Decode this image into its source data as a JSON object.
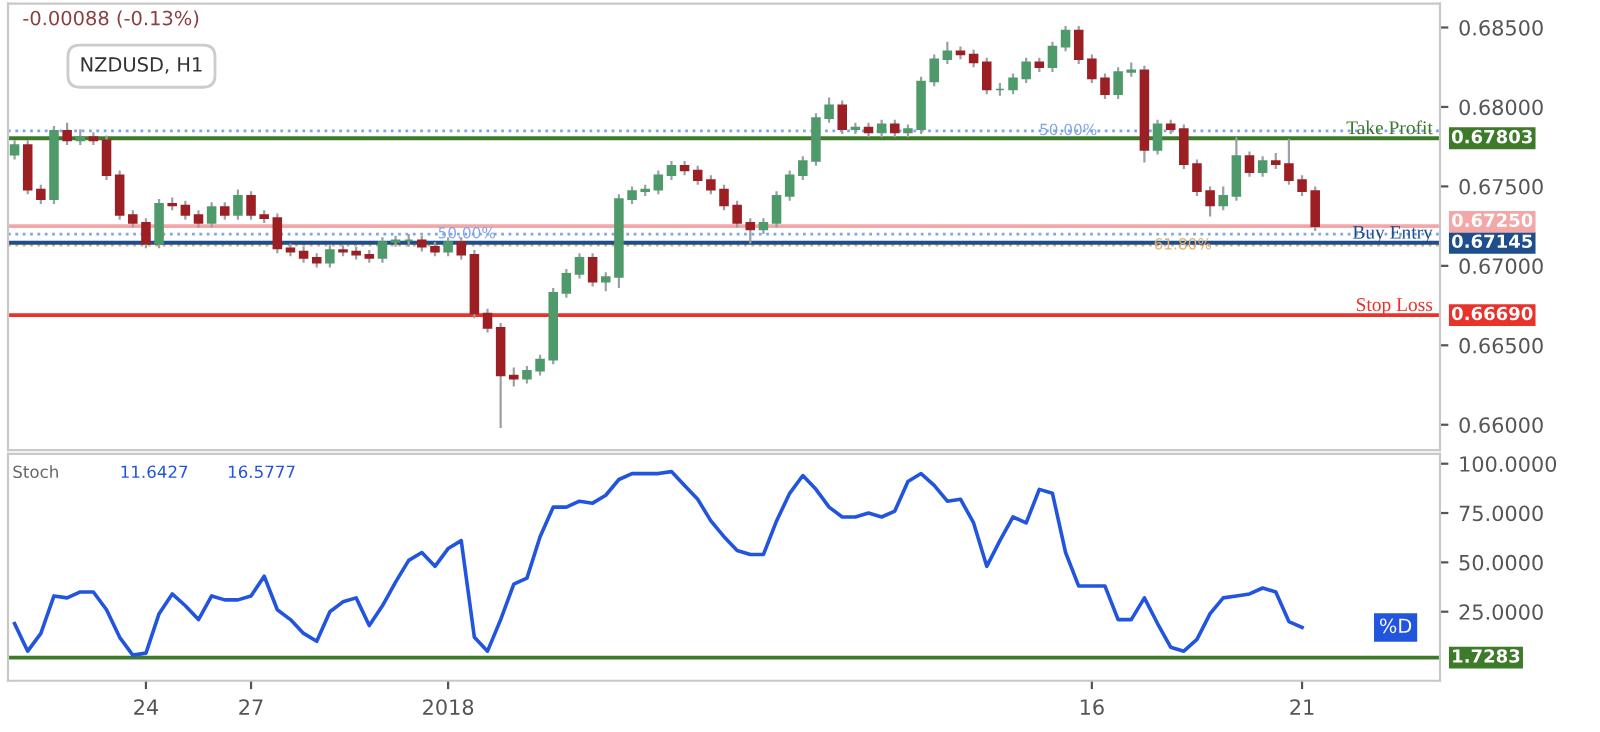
{
  "chart_data": [
    {
      "type": "candlestick",
      "categories": [
        null,
        null,
        null,
        null,
        null,
        null,
        null,
        null,
        null,
        null,
        "24",
        null,
        null,
        null,
        null,
        null,
        null,
        null,
        "27",
        null,
        null,
        null,
        null,
        null,
        null,
        null,
        null,
        null,
        null,
        null,
        null,
        null,
        null,
        "2018",
        null,
        null,
        null,
        null,
        null,
        null,
        null,
        null,
        null,
        null,
        null,
        null,
        null,
        null,
        null,
        null,
        null,
        null,
        null,
        null,
        null,
        null,
        null,
        null,
        null,
        null,
        null,
        null,
        null,
        null,
        null,
        null,
        null,
        null,
        null,
        null,
        null,
        null,
        null,
        null,
        null,
        null,
        null,
        null,
        null,
        null,
        null,
        null,
        "16",
        null,
        null,
        null,
        null,
        null,
        null,
        null,
        null,
        null,
        null,
        null,
        null,
        null,
        null,
        null,
        "21",
        null,
        null,
        null,
        null,
        null,
        null,
        null,
        null,
        null,
        null
      ],
      "ohlc": [
        [
          0.677,
          0.6779,
          0.6767,
          0.6776
        ],
        [
          0.6776,
          0.6779,
          0.6745,
          0.6748
        ],
        [
          0.6748,
          0.6751,
          0.6739,
          0.6742
        ],
        [
          0.6742,
          0.6788,
          0.6739,
          0.6785
        ],
        [
          0.6785,
          0.679,
          0.6776,
          0.6779
        ],
        [
          0.6779,
          0.6786,
          0.6776,
          0.6781
        ],
        [
          0.6781,
          0.6784,
          0.6776,
          0.6779
        ],
        [
          0.6779,
          0.6782,
          0.6754,
          0.6757
        ],
        [
          0.6757,
          0.676,
          0.6729,
          0.6732
        ],
        [
          0.6732,
          0.6735,
          0.6724,
          0.6727
        ],
        [
          0.6727,
          0.673,
          0.6711,
          0.6714
        ],
        [
          0.6714,
          0.6742,
          0.6711,
          0.6739
        ],
        [
          0.6739,
          0.6743,
          0.6735,
          0.6738
        ],
        [
          0.6738,
          0.6741,
          0.6729,
          0.6732
        ],
        [
          0.6732,
          0.6735,
          0.6724,
          0.6727
        ],
        [
          0.6727,
          0.674,
          0.6724,
          0.6737
        ],
        [
          0.6737,
          0.674,
          0.6729,
          0.6732
        ],
        [
          0.6732,
          0.6748,
          0.6729,
          0.6744
        ],
        [
          0.6744,
          0.6747,
          0.6729,
          0.6732
        ],
        [
          0.6732,
          0.6735,
          0.6727,
          0.673
        ],
        [
          0.673,
          0.6733,
          0.6708,
          0.6711
        ],
        [
          0.6711,
          0.6714,
          0.6706,
          0.6709
        ],
        [
          0.6709,
          0.6712,
          0.6702,
          0.6705
        ],
        [
          0.6705,
          0.6708,
          0.6699,
          0.6702
        ],
        [
          0.6702,
          0.6713,
          0.6699,
          0.671
        ],
        [
          0.671,
          0.6713,
          0.6706,
          0.6709
        ],
        [
          0.6709,
          0.6712,
          0.6704,
          0.6707
        ],
        [
          0.6707,
          0.671,
          0.6702,
          0.6705
        ],
        [
          0.6705,
          0.6718,
          0.6702,
          0.6715
        ],
        [
          0.6715,
          0.6719,
          0.6712,
          0.6716
        ],
        [
          0.6716,
          0.672,
          0.6712,
          0.6716
        ],
        [
          0.6716,
          0.6719,
          0.6709,
          0.6712
        ],
        [
          0.6712,
          0.6715,
          0.6706,
          0.6709
        ],
        [
          0.6709,
          0.6718,
          0.6706,
          0.6715
        ],
        [
          0.6715,
          0.6718,
          0.6704,
          0.6707
        ],
        [
          0.6707,
          0.671,
          0.6667,
          0.667
        ],
        [
          0.667,
          0.6673,
          0.6658,
          0.6661
        ],
        [
          0.6661,
          0.6664,
          0.6598,
          0.6631
        ],
        [
          0.6631,
          0.6636,
          0.6624,
          0.6629
        ],
        [
          0.6629,
          0.6637,
          0.6626,
          0.6634
        ],
        [
          0.6634,
          0.6644,
          0.6631,
          0.6641
        ],
        [
          0.6641,
          0.6686,
          0.6638,
          0.6683
        ],
        [
          0.6683,
          0.6698,
          0.668,
          0.6695
        ],
        [
          0.6695,
          0.6708,
          0.6692,
          0.6705
        ],
        [
          0.6705,
          0.6708,
          0.6687,
          0.669
        ],
        [
          0.669,
          0.6696,
          0.6684,
          0.6693
        ],
        [
          0.6693,
          0.6745,
          0.6686,
          0.6742
        ],
        [
          0.6742,
          0.675,
          0.6739,
          0.6747
        ],
        [
          0.6747,
          0.6751,
          0.6744,
          0.6748
        ],
        [
          0.6748,
          0.676,
          0.6745,
          0.6757
        ],
        [
          0.6757,
          0.6766,
          0.6754,
          0.6763
        ],
        [
          0.6763,
          0.6766,
          0.6757,
          0.676
        ],
        [
          0.676,
          0.6763,
          0.6751,
          0.6754
        ],
        [
          0.6754,
          0.6757,
          0.6745,
          0.6748
        ],
        [
          0.6748,
          0.6751,
          0.6735,
          0.6738
        ],
        [
          0.6738,
          0.6741,
          0.6724,
          0.6727
        ],
        [
          0.6727,
          0.673,
          0.6714,
          0.6723
        ],
        [
          0.6723,
          0.673,
          0.672,
          0.6727
        ],
        [
          0.6727,
          0.6747,
          0.6724,
          0.6744
        ],
        [
          0.6744,
          0.676,
          0.6741,
          0.6757
        ],
        [
          0.6757,
          0.6769,
          0.6754,
          0.6766
        ],
        [
          0.6766,
          0.6796,
          0.6763,
          0.6793
        ],
        [
          0.6793,
          0.6806,
          0.679,
          0.6801
        ],
        [
          0.6801,
          0.6804,
          0.6783,
          0.6786
        ],
        [
          0.6786,
          0.679,
          0.6783,
          0.6787
        ],
        [
          0.6787,
          0.679,
          0.6781,
          0.6784
        ],
        [
          0.6784,
          0.6792,
          0.6781,
          0.6789
        ],
        [
          0.6789,
          0.6792,
          0.6781,
          0.6784
        ],
        [
          0.6784,
          0.6789,
          0.6781,
          0.6786
        ],
        [
          0.6786,
          0.6819,
          0.6783,
          0.6816
        ],
        [
          0.6816,
          0.6833,
          0.6813,
          0.683
        ],
        [
          0.683,
          0.6841,
          0.6827,
          0.6835
        ],
        [
          0.6835,
          0.6838,
          0.683,
          0.6833
        ],
        [
          0.6833,
          0.6836,
          0.6825,
          0.6828
        ],
        [
          0.6828,
          0.6831,
          0.6808,
          0.6811
        ],
        [
          0.6811,
          0.6815,
          0.6807,
          0.6811
        ],
        [
          0.6811,
          0.6821,
          0.6808,
          0.6818
        ],
        [
          0.6818,
          0.6831,
          0.6815,
          0.6828
        ],
        [
          0.6828,
          0.6831,
          0.6822,
          0.6825
        ],
        [
          0.6825,
          0.6841,
          0.6822,
          0.6838
        ],
        [
          0.6838,
          0.6851,
          0.6835,
          0.6848
        ],
        [
          0.6848,
          0.6851,
          0.6827,
          0.683
        ],
        [
          0.683,
          0.6833,
          0.6815,
          0.6818
        ],
        [
          0.6818,
          0.6821,
          0.6805,
          0.6808
        ],
        [
          0.6808,
          0.6825,
          0.6805,
          0.6822
        ],
        [
          0.6822,
          0.6828,
          0.6819,
          0.6823
        ],
        [
          0.6823,
          0.6826,
          0.6765,
          0.6773
        ],
        [
          0.6773,
          0.6792,
          0.677,
          0.6789
        ],
        [
          0.6789,
          0.6792,
          0.6783,
          0.6786
        ],
        [
          0.6786,
          0.6789,
          0.6761,
          0.6764
        ],
        [
          0.6764,
          0.6767,
          0.6744,
          0.6747
        ],
        [
          0.6747,
          0.675,
          0.6731,
          0.6738
        ],
        [
          0.6738,
          0.675,
          0.6735,
          0.6744
        ],
        [
          0.6744,
          0.6781,
          0.6741,
          0.6769
        ],
        [
          0.6769,
          0.6772,
          0.6756,
          0.6759
        ],
        [
          0.6759,
          0.6769,
          0.6756,
          0.6766
        ],
        [
          0.6766,
          0.6771,
          0.6761,
          0.6764
        ],
        [
          0.6764,
          0.678,
          0.6751,
          0.6754
        ],
        [
          0.6754,
          0.6757,
          0.6744,
          0.6747
        ],
        [
          0.6747,
          0.675,
          0.6722,
          0.6725
        ],
        null,
        null,
        null,
        null,
        null,
        null,
        null,
        null,
        null
      ],
      "ylim": [
        0.6584,
        0.6865
      ],
      "yticks": [
        {
          "value": 0.66,
          "label": "0.66000"
        },
        {
          "value": 0.665,
          "label": "0.66500"
        },
        {
          "value": 0.67,
          "label": "0.67000"
        },
        {
          "value": 0.675,
          "label": "0.67500"
        },
        {
          "value": 0.68,
          "label": "0.68000"
        },
        {
          "value": 0.685,
          "label": "0.68500"
        }
      ],
      "tick_labels": "y",
      "ref_lines": [
        {
          "axis": "y",
          "value": 0.6725,
          "label": "0.67250",
          "color": "#f2a8a8",
          "line_style": "solid"
        },
        {
          "axis": "y",
          "value": 0.672,
          "color": "#7fa7e8",
          "line_style": "dotted"
        },
        {
          "axis": "y",
          "value": 0.6785,
          "color": "#7fa7e8",
          "line_style": "dotted"
        },
        {
          "axis": "y",
          "value": 0.6713,
          "color": "#e0b070",
          "line_style": "dotted"
        },
        {
          "axis": "y",
          "value": 0.67803,
          "label": "0.67803",
          "color": "#3d7a2a",
          "line_style": "solid"
        },
        {
          "axis": "y",
          "value": 0.67145,
          "label": "0.67145",
          "color": "#1f4e8c",
          "line_style": "solid"
        },
        {
          "axis": "y",
          "value": 0.6669,
          "label": "0.66690",
          "color": "#e8322c",
          "line_style": "solid"
        }
      ],
      "annotations": [
        "-0.00088 (-0.13%)",
        "NZDUSD, H1",
        {
          "text": "50.00%",
          "y": 0.672
        },
        {
          "text": "50.00%",
          "y": 0.6785
        },
        {
          "text": "61.80%",
          "y": 0.6713
        },
        {
          "text": "Take Profit",
          "y": 0.67803
        },
        {
          "text": "Buy Entry",
          "y": 0.67145
        },
        {
          "text": "Stop Loss",
          "y": 0.6669
        }
      ]
    },
    {
      "type": "line",
      "categories": [
        null,
        null,
        null,
        null,
        null,
        null,
        null,
        null,
        null,
        null,
        "24",
        null,
        null,
        null,
        null,
        null,
        null,
        null,
        "27",
        null,
        null,
        null,
        null,
        null,
        null,
        null,
        null,
        null,
        null,
        null,
        null,
        null,
        null,
        "2018",
        null,
        null,
        null,
        null,
        null,
        null,
        null,
        null,
        null,
        null,
        null,
        null,
        null,
        null,
        null,
        null,
        null,
        null,
        null,
        null,
        null,
        null,
        null,
        null,
        null,
        null,
        null,
        null,
        null,
        null,
        null,
        null,
        null,
        null,
        null,
        null,
        null,
        null,
        null,
        null,
        null,
        null,
        null,
        null,
        null,
        null,
        null,
        null,
        "16",
        null,
        null,
        null,
        null,
        null,
        null,
        null,
        null,
        null,
        null,
        null,
        null,
        null,
        null,
        null,
        "21",
        null,
        null,
        null,
        null,
        null,
        null,
        null,
        null,
        null,
        null
      ],
      "series": [
        {
          "name": "%D",
          "color": "#2255dd",
          "values": [
            19,
            5,
            14,
            33,
            32,
            35,
            35,
            26,
            12,
            3,
            4,
            24,
            34,
            28,
            21,
            33,
            31,
            31,
            33,
            43,
            26,
            21,
            14,
            10,
            25,
            30,
            32,
            18,
            28,
            40,
            51,
            55,
            48,
            57,
            61,
            12,
            5,
            21,
            39,
            42,
            63,
            78,
            78,
            81,
            80,
            84,
            92,
            95,
            95,
            95,
            96,
            89,
            82,
            71,
            63,
            56,
            54,
            54,
            71,
            85,
            94,
            87,
            78,
            73,
            73,
            75,
            73,
            76,
            91,
            95,
            89,
            81,
            82,
            70,
            48,
            61,
            73,
            70,
            87,
            85,
            55,
            38,
            38,
            38,
            21,
            21,
            32,
            19,
            7,
            5,
            11,
            24,
            32,
            33,
            34,
            37,
            35,
            20,
            17,
            null,
            null,
            null,
            null,
            null,
            null,
            null,
            null,
            null,
            null
          ]
        }
      ],
      "ylim": [
        -10,
        105
      ],
      "yticks": [
        {
          "value": 25,
          "label": "25.0000"
        },
        {
          "value": 50,
          "label": "50.0000"
        },
        {
          "value": 75,
          "label": "75.0000"
        },
        {
          "value": 100,
          "label": "100.0000"
        }
      ],
      "ref_lines": [
        {
          "axis": "y",
          "value": 1.7283,
          "label": "1.7283",
          "color": "#3d7a2a",
          "line_style": "solid"
        }
      ],
      "annotations": [
        "Stoch",
        "11.6427",
        "16.5777"
      ]
    }
  ]
}
